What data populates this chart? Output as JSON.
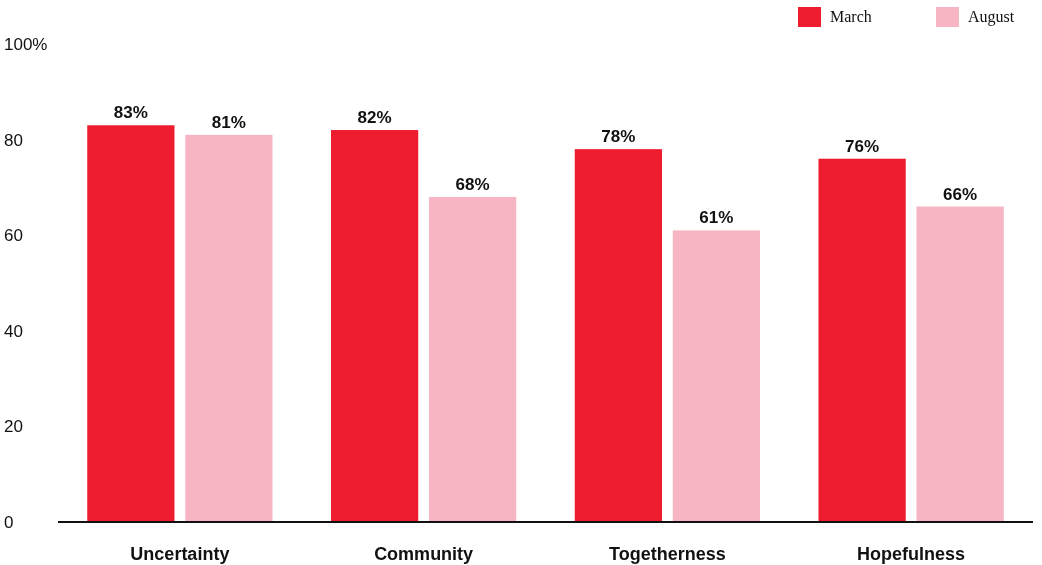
{
  "chart_data": {
    "type": "bar",
    "categories": [
      "Uncertainty",
      "Community",
      "Togetherness",
      "Hopefulness"
    ],
    "series": [
      {
        "name": "March",
        "color": "#ed1c2e",
        "values": [
          83,
          82,
          78,
          76
        ],
        "value_labels": [
          "83%",
          "82%",
          "78%",
          "76%"
        ]
      },
      {
        "name": "August",
        "color": "#f7b5c3",
        "values": [
          81,
          68,
          61,
          66
        ],
        "value_labels": [
          "81%",
          "68%",
          "61%",
          "66%"
        ]
      }
    ],
    "ylim": [
      0,
      100
    ],
    "yticks": [
      0,
      20,
      40,
      60,
      80,
      {
        "value": 100,
        "label": "100%"
      }
    ],
    "grid": false,
    "legend": "top right"
  }
}
